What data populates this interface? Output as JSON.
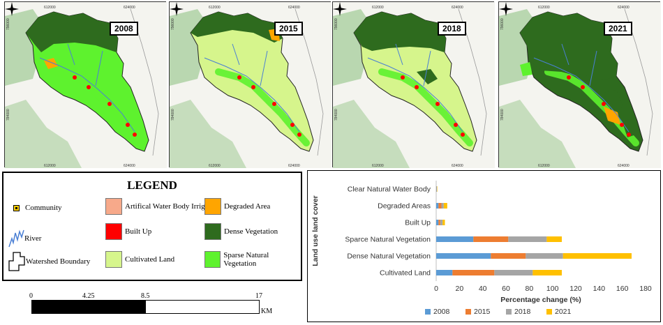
{
  "maps": [
    {
      "year": "2008",
      "coords": {
        "x1": "612000",
        "x2": "624000",
        "y1": "784000",
        "y2": "796000"
      }
    },
    {
      "year": "2015",
      "coords": {
        "x1": "612000",
        "x2": "624000",
        "y1": "784000",
        "y2": "796000"
      }
    },
    {
      "year": "2018",
      "coords": {
        "x1": "612000",
        "x2": "624000",
        "y1": "784000",
        "y2": "796000"
      }
    },
    {
      "year": "2021",
      "coords": {
        "x1": "612000",
        "x2": "624000",
        "y1": "784000",
        "y2": "796000"
      }
    }
  ],
  "legend": {
    "title": "LEGEND",
    "items": [
      {
        "label": "Community",
        "color": "#000000"
      },
      {
        "label": "River",
        "color": "#4a7fd4"
      },
      {
        "label": "Watershed Boundary",
        "color": "#000000"
      },
      {
        "label": "Artifical Water Body Irrigation",
        "color": "#f7a98a"
      },
      {
        "label": "Built Up",
        "color": "#ff0000"
      },
      {
        "label": "Cultivated Land",
        "color": "#d6f58c"
      },
      {
        "label": "Degraded Area",
        "color": "#ffa500"
      },
      {
        "label": "Dense Vegetation",
        "color": "#2e6b1e"
      },
      {
        "label": "Sparse Natural Vegetation",
        "color": "#5ef22e"
      }
    ]
  },
  "scale": {
    "ticks": [
      "0",
      "4.25",
      "8.5",
      "17"
    ],
    "unit": "KM"
  },
  "chart_data": {
    "type": "bar",
    "orientation": "horizontal",
    "stacked": true,
    "categories": [
      "Clear Natural Water Body",
      "Degraded Areas",
      "Built Up",
      "Sparce Natural Vegetation",
      "Dense Natural Vegetation",
      "Cultivated Land"
    ],
    "series": [
      {
        "name": "2008",
        "color": "#5b9bd5",
        "values": [
          0.3,
          2,
          2,
          32,
          47,
          14
        ]
      },
      {
        "name": "2015",
        "color": "#ed7d31",
        "values": [
          0.2,
          2.5,
          1.5,
          30,
          30,
          36
        ]
      },
      {
        "name": "2018",
        "color": "#a5a5a5",
        "values": [
          0.2,
          2,
          2,
          33,
          32,
          33
        ]
      },
      {
        "name": "2021",
        "color": "#ffc000",
        "values": [
          0.3,
          3,
          2,
          13,
          59,
          25
        ]
      }
    ],
    "xlabel": "Percentage change (%)",
    "ylabel": "Land use land cover",
    "xticks": [
      "0",
      "20",
      "40",
      "60",
      "80",
      "100",
      "120",
      "140",
      "160",
      "180"
    ],
    "xlim": [
      0,
      180
    ],
    "legend_position": "bottom"
  }
}
